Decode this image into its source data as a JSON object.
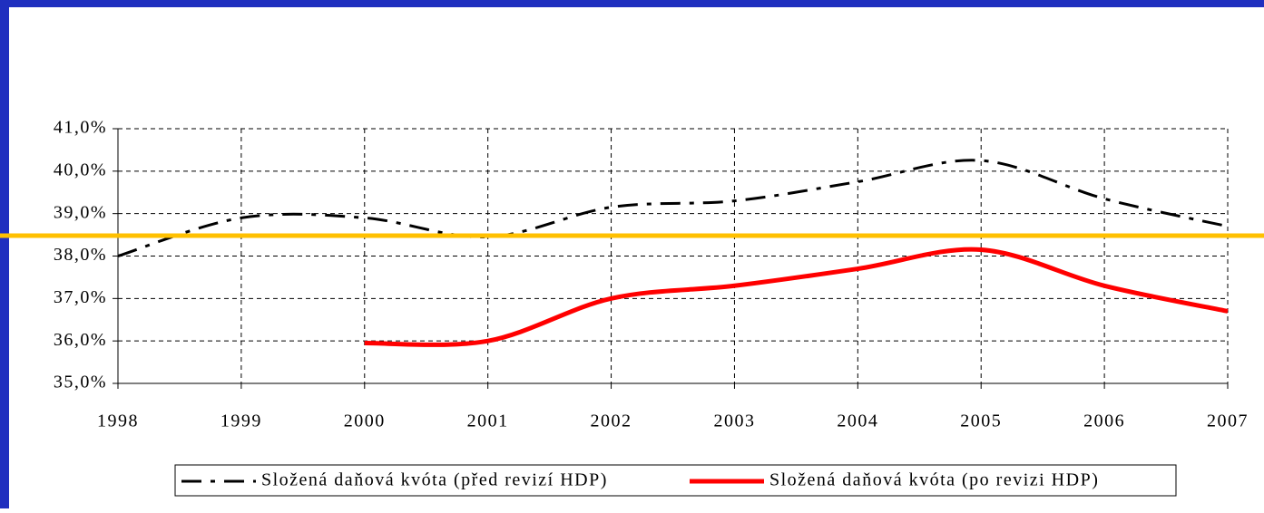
{
  "chart_data": {
    "type": "line",
    "x": [
      1998,
      1999,
      2000,
      2001,
      2002,
      2003,
      2004,
      2005,
      2006,
      2007
    ],
    "xlim": [
      1998,
      2007
    ],
    "xticks": [
      1998,
      1999,
      2000,
      2001,
      2002,
      2003,
      2004,
      2005,
      2006,
      2007
    ],
    "ylim": [
      35,
      41
    ],
    "yticks": [
      {
        "value": 35,
        "label": "35,0%"
      },
      {
        "value": 36,
        "label": "36,0%"
      },
      {
        "value": 37,
        "label": "37,0%"
      },
      {
        "value": 38,
        "label": "38,0%"
      },
      {
        "value": 39,
        "label": "39,0%"
      },
      {
        "value": 40,
        "label": "40,0%"
      },
      {
        "value": 41,
        "label": "41,0%"
      }
    ],
    "grid": true,
    "legend": "bottom",
    "series": [
      {
        "name": "Složená daňová kvóta (před revizí HDP)",
        "color": "#000000",
        "dash": "dash-dot",
        "values": [
          38.0,
          38.9,
          38.9,
          38.45,
          39.15,
          39.3,
          39.75,
          40.25,
          39.35,
          38.7
        ]
      },
      {
        "name": "Složená daňová kvóta (po revizi HDP)",
        "color": "#ff0000",
        "dash": "solid",
        "values": [
          null,
          null,
          35.95,
          36.0,
          37.0,
          37.3,
          37.7,
          38.15,
          37.3,
          36.7
        ]
      }
    ],
    "hline": {
      "value": 38.48,
      "color": "#ffc000"
    }
  }
}
